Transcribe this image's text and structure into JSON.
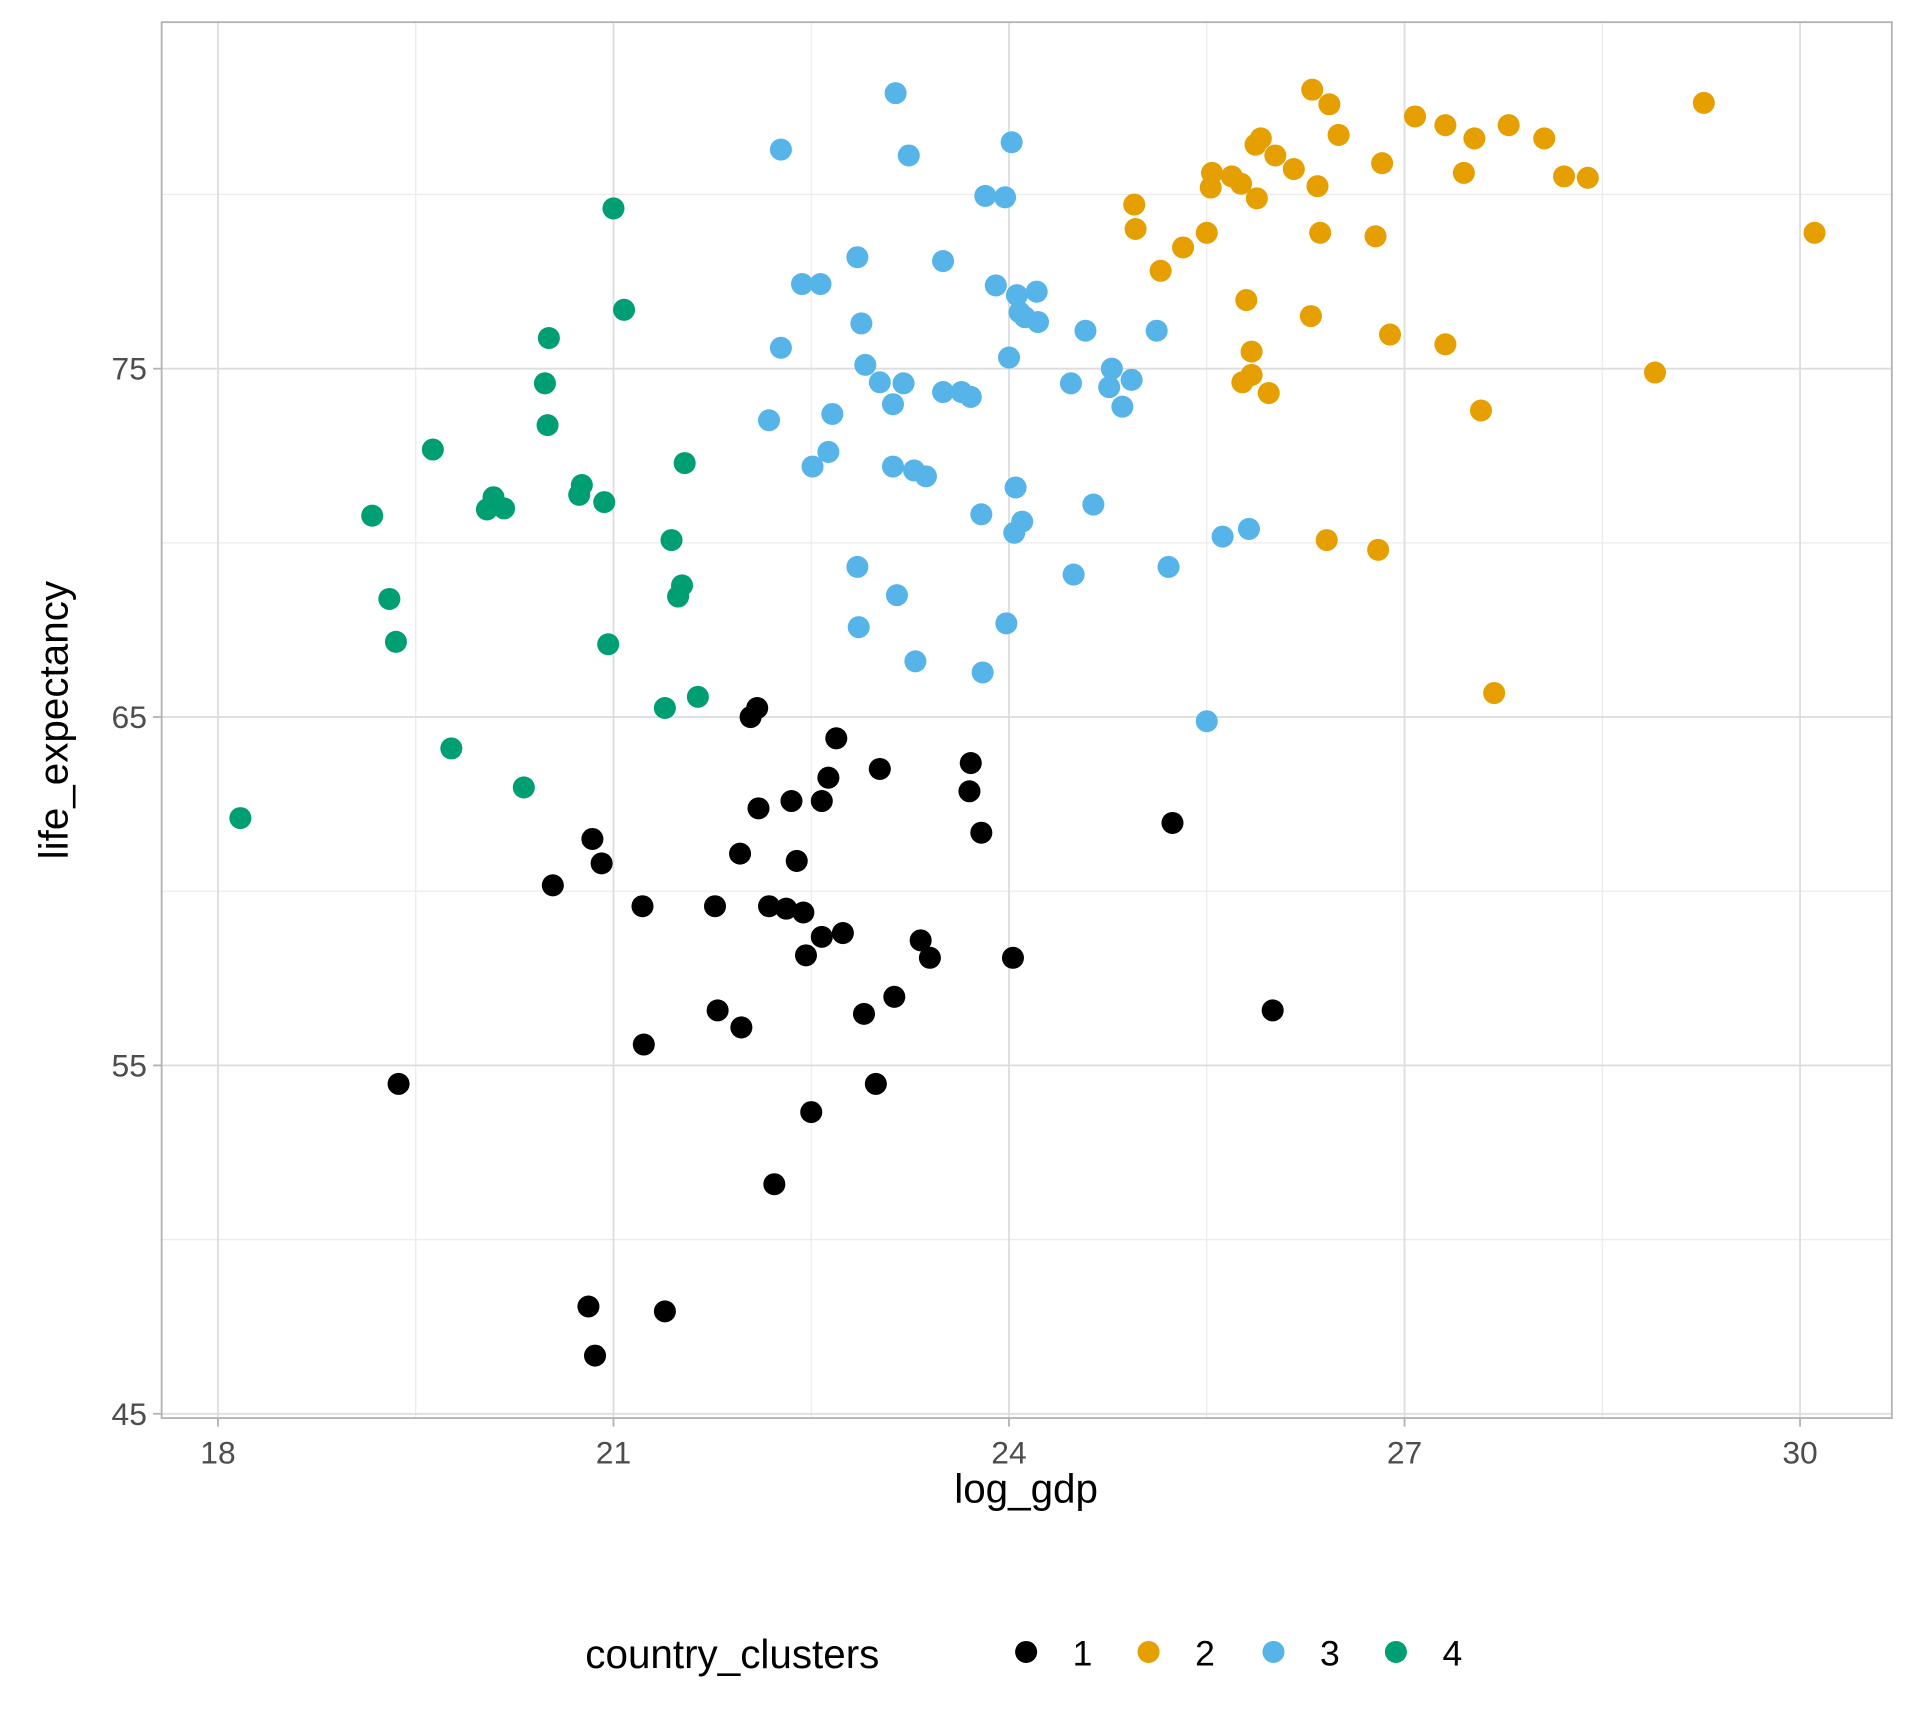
{
  "chart_data": {
    "type": "scatter",
    "xlabel": "log_gdp",
    "ylabel": "life_expectancy",
    "xlim": [
      17.5,
      30.6
    ],
    "ylim": [
      45,
      84.5
    ],
    "x_ticks": [
      18,
      21,
      24,
      27,
      30
    ],
    "y_ticks": [
      45,
      55,
      65,
      75
    ],
    "x_minor": [
      19.5,
      22.5,
      25.5,
      28.5
    ],
    "y_minor": [
      50,
      60,
      70,
      80
    ],
    "grid": true,
    "legend": {
      "title": "country_clusters",
      "position": "bottom"
    },
    "series": [
      {
        "name": "1",
        "color": "#000000",
        "points": [
          [
            19.37,
            54.47
          ],
          [
            20.81,
            48.08
          ],
          [
            20.86,
            46.67
          ],
          [
            21.39,
            47.94
          ],
          [
            22.22,
            51.59
          ],
          [
            22.5,
            53.66
          ],
          [
            22.99,
            54.47
          ],
          [
            21.23,
            55.6
          ],
          [
            21.97,
            56.09
          ],
          [
            21.79,
            56.58
          ],
          [
            22.9,
            56.48
          ],
          [
            23.13,
            56.97
          ],
          [
            26.0,
            56.58
          ],
          [
            24.03,
            58.09
          ],
          [
            23.4,
            58.09
          ],
          [
            23.33,
            58.59
          ],
          [
            22.46,
            58.16
          ],
          [
            22.58,
            58.69
          ],
          [
            22.74,
            58.8
          ],
          [
            22.44,
            59.39
          ],
          [
            22.31,
            59.5
          ],
          [
            22.18,
            59.57
          ],
          [
            21.77,
            59.57
          ],
          [
            21.22,
            59.57
          ],
          [
            20.54,
            60.17
          ],
          [
            20.91,
            60.8
          ],
          [
            20.84,
            61.5
          ],
          [
            21.96,
            61.08
          ],
          [
            22.39,
            60.87
          ],
          [
            23.79,
            61.68
          ],
          [
            25.24,
            61.96
          ],
          [
            22.1,
            62.38
          ],
          [
            22.35,
            62.59
          ],
          [
            22.58,
            62.59
          ],
          [
            22.63,
            63.26
          ],
          [
            23.02,
            63.51
          ],
          [
            23.7,
            62.87
          ],
          [
            23.71,
            63.68
          ],
          [
            22.69,
            64.39
          ],
          [
            22.04,
            65.0
          ],
          [
            22.09,
            65.26
          ]
        ]
      },
      {
        "name": "2",
        "color": "#E69F00",
        "points": [
          [
            26.3,
            83.01
          ],
          [
            26.43,
            82.59
          ],
          [
            29.27,
            82.63
          ],
          [
            27.08,
            82.24
          ],
          [
            27.31,
            81.99
          ],
          [
            27.79,
            81.99
          ],
          [
            27.53,
            81.61
          ],
          [
            28.06,
            81.61
          ],
          [
            26.5,
            81.71
          ],
          [
            25.87,
            81.43
          ],
          [
            25.91,
            81.61
          ],
          [
            26.02,
            81.12
          ],
          [
            26.83,
            80.9
          ],
          [
            26.16,
            80.73
          ],
          [
            25.54,
            80.62
          ],
          [
            25.69,
            80.52
          ],
          [
            27.45,
            80.62
          ],
          [
            28.21,
            80.52
          ],
          [
            28.39,
            80.48
          ],
          [
            25.53,
            80.2
          ],
          [
            25.76,
            80.31
          ],
          [
            26.34,
            80.24
          ],
          [
            25.88,
            79.89
          ],
          [
            24.95,
            79.71
          ],
          [
            24.96,
            79.01
          ],
          [
            25.5,
            78.9
          ],
          [
            26.36,
            78.9
          ],
          [
            26.78,
            78.8
          ],
          [
            30.11,
            78.9
          ],
          [
            25.32,
            78.48
          ],
          [
            25.15,
            77.81
          ],
          [
            25.8,
            76.97
          ],
          [
            26.29,
            76.51
          ],
          [
            26.89,
            75.98
          ],
          [
            27.31,
            75.7
          ],
          [
            25.84,
            75.49
          ],
          [
            25.84,
            74.82
          ],
          [
            25.77,
            74.61
          ],
          [
            25.97,
            74.3
          ],
          [
            28.9,
            74.89
          ],
          [
            27.58,
            73.8
          ],
          [
            26.41,
            70.08
          ],
          [
            26.8,
            69.8
          ],
          [
            27.68,
            65.69
          ]
        ]
      },
      {
        "name": "3",
        "color": "#56B4E9",
        "points": [
          [
            23.14,
            82.91
          ],
          [
            22.27,
            81.29
          ],
          [
            23.24,
            81.12
          ],
          [
            24.02,
            81.5
          ],
          [
            23.82,
            79.96
          ],
          [
            23.97,
            79.92
          ],
          [
            22.85,
            78.2
          ],
          [
            23.5,
            78.09
          ],
          [
            22.43,
            77.43
          ],
          [
            22.57,
            77.43
          ],
          [
            23.9,
            77.39
          ],
          [
            24.06,
            77.11
          ],
          [
            24.21,
            77.21
          ],
          [
            24.08,
            76.62
          ],
          [
            24.12,
            76.48
          ],
          [
            24.22,
            76.34
          ],
          [
            22.88,
            76.3
          ],
          [
            24.58,
            76.09
          ],
          [
            25.12,
            76.09
          ],
          [
            22.27,
            75.6
          ],
          [
            24.0,
            75.32
          ],
          [
            22.91,
            75.11
          ],
          [
            24.78,
            75.0
          ],
          [
            23.02,
            74.61
          ],
          [
            23.2,
            74.58
          ],
          [
            24.47,
            74.58
          ],
          [
            24.93,
            74.68
          ],
          [
            24.76,
            74.47
          ],
          [
            23.5,
            74.33
          ],
          [
            23.64,
            74.33
          ],
          [
            23.71,
            74.19
          ],
          [
            23.12,
            73.98
          ],
          [
            24.86,
            73.91
          ],
          [
            22.66,
            73.7
          ],
          [
            22.18,
            73.52
          ],
          [
            22.63,
            72.61
          ],
          [
            22.51,
            72.19
          ],
          [
            23.12,
            72.19
          ],
          [
            23.28,
            72.08
          ],
          [
            23.37,
            71.91
          ],
          [
            24.05,
            71.59
          ],
          [
            23.79,
            70.82
          ],
          [
            24.1,
            70.61
          ],
          [
            24.64,
            71.1
          ],
          [
            24.04,
            70.29
          ],
          [
            25.62,
            70.18
          ],
          [
            25.82,
            70.4
          ],
          [
            22.85,
            69.31
          ],
          [
            25.21,
            69.31
          ],
          [
            24.49,
            69.09
          ],
          [
            23.15,
            68.5
          ],
          [
            22.86,
            67.58
          ],
          [
            23.98,
            67.69
          ],
          [
            23.29,
            66.6
          ],
          [
            23.8,
            66.28
          ],
          [
            25.5,
            64.88
          ]
        ]
      },
      {
        "name": "4",
        "color": "#009E73",
        "points": [
          [
            21.0,
            79.6
          ],
          [
            21.08,
            76.69
          ],
          [
            20.51,
            75.88
          ],
          [
            20.48,
            74.58
          ],
          [
            20.5,
            73.38
          ],
          [
            19.63,
            72.68
          ],
          [
            21.54,
            72.29
          ],
          [
            20.76,
            71.66
          ],
          [
            20.74,
            71.38
          ],
          [
            20.93,
            71.17
          ],
          [
            20.09,
            71.31
          ],
          [
            20.04,
            70.96
          ],
          [
            20.17,
            70.99
          ],
          [
            19.17,
            70.78
          ],
          [
            21.44,
            70.08
          ],
          [
            21.52,
            68.78
          ],
          [
            21.49,
            68.46
          ],
          [
            19.3,
            68.39
          ],
          [
            19.35,
            67.16
          ],
          [
            20.96,
            67.09
          ],
          [
            21.39,
            65.26
          ],
          [
            21.64,
            65.58
          ],
          [
            19.77,
            64.1
          ],
          [
            20.32,
            62.98
          ],
          [
            18.17,
            62.1
          ]
        ]
      }
    ]
  }
}
